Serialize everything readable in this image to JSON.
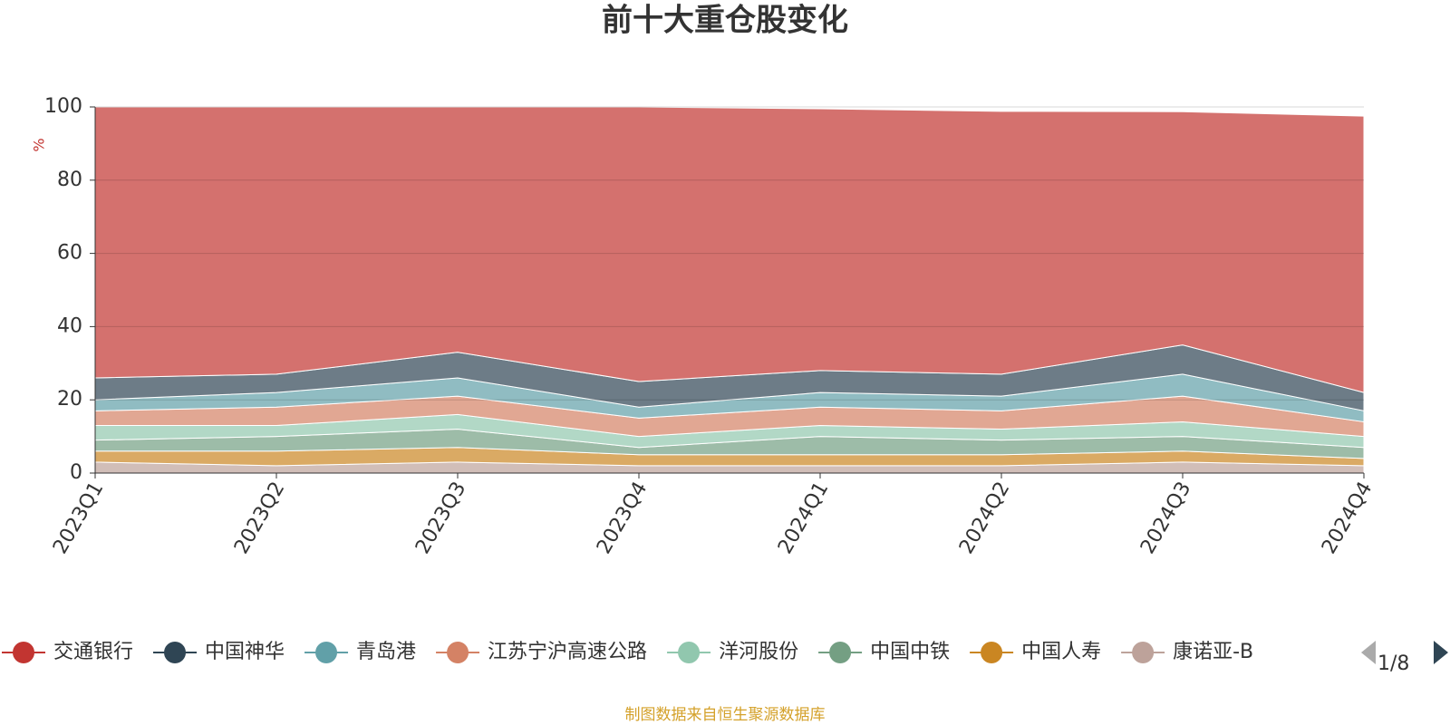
{
  "chart_data": {
    "type": "stacked-area",
    "title": "前十大重仓股变化",
    "y_label": "%",
    "categories": [
      "2023Q1",
      "2023Q2",
      "2023Q3",
      "2023Q4",
      "2024Q1",
      "2024Q2",
      "2024Q3",
      "2024Q4"
    ],
    "series": [
      {
        "name": "交通银行",
        "color": "#c23531",
        "values": [
          74,
          73,
          67,
          75,
          71.5,
          71.8,
          63.7,
          75.5
        ]
      },
      {
        "name": "中国神华",
        "color": "#2f4554",
        "values": [
          6,
          5,
          7,
          7,
          6,
          6,
          8,
          5
        ]
      },
      {
        "name": "青岛港",
        "color": "#61a0a8",
        "values": [
          3,
          4,
          5,
          3,
          4,
          4,
          6,
          3
        ]
      },
      {
        "name": "江苏宁沪高速公路",
        "color": "#d48265",
        "values": [
          4,
          5,
          5,
          5,
          5,
          5,
          7,
          4
        ]
      },
      {
        "name": "洋河股份",
        "color": "#91c7ae",
        "values": [
          4,
          3,
          4,
          3,
          3,
          3,
          4,
          3
        ]
      },
      {
        "name": "中国中铁",
        "color": "#749f83",
        "values": [
          3,
          4,
          5,
          2,
          5,
          4,
          4,
          3
        ]
      },
      {
        "name": "中国人寿",
        "color": "#ca8622",
        "values": [
          3,
          4,
          4,
          3,
          3,
          3,
          3,
          2
        ]
      },
      {
        "name": "康诺亚-B",
        "color": "#bda29a",
        "values": [
          3,
          2,
          3,
          2,
          2,
          2,
          3,
          2
        ]
      }
    ],
    "ylim": [
      0,
      100
    ],
    "yticks": [
      0,
      20,
      40,
      60,
      80,
      100
    ],
    "grid": true,
    "legend_page": "1/8",
    "source": "制图数据来自恒生聚源数据库"
  }
}
